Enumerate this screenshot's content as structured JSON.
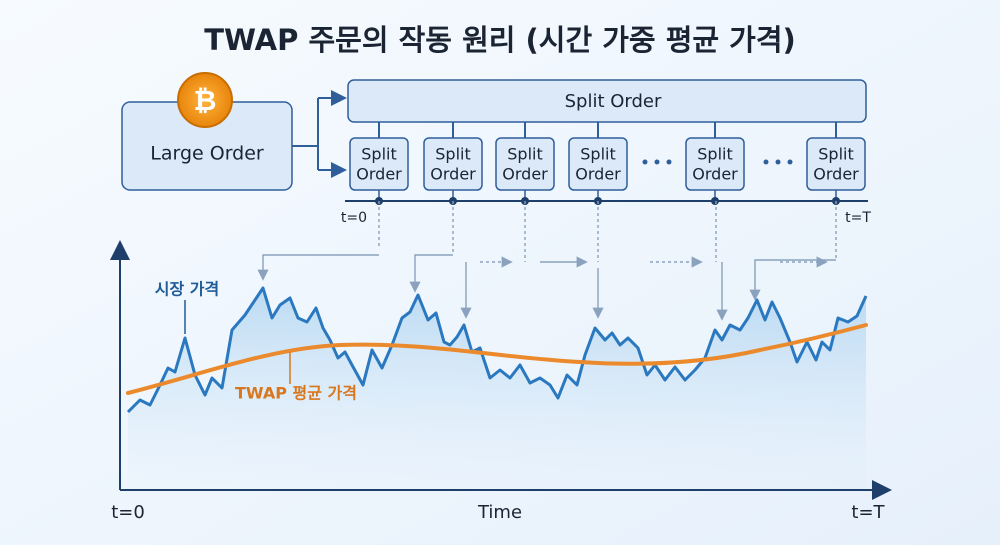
{
  "header": {
    "title": "TWAP 주문의 작동 원리 (시간 가중 평균 가격)"
  },
  "large_order": {
    "icon": "₿",
    "label": "Large Order"
  },
  "split_bar": {
    "label": "Split Order"
  },
  "split_orders": [
    [
      "Split",
      "Order"
    ],
    [
      "Split",
      "Order"
    ],
    [
      "Split",
      "Order"
    ],
    [
      "Split",
      "Order"
    ],
    [
      "Split",
      "Order"
    ],
    [
      "Split",
      "Order"
    ]
  ],
  "timeline": {
    "start": "t=0",
    "end": "t=T"
  },
  "chart": {
    "price_label": "시장 가격",
    "twap_label": "TWAP 평균 가격",
    "x_start": "t=0",
    "x_label": "Time",
    "x_end": "t=T"
  }
}
